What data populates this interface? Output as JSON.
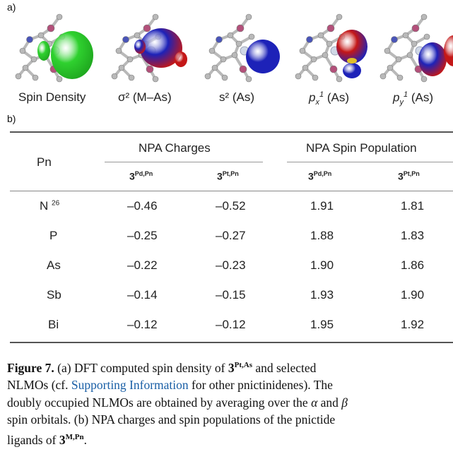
{
  "panel_a_label": "a)",
  "panel_b_label": "b)",
  "orbitals": [
    {
      "caption": "Spin Density",
      "lobe_color": "#2fd12f",
      "lobe_color_2": "#1fa81f"
    },
    {
      "caption": "σ² (M–As)",
      "lobe_color": "#1d22b8",
      "lobe_color_2": "#c41717"
    },
    {
      "caption": "s² (As)",
      "lobe_color": "#1d22b8",
      "lobe_color_2": "#1d22b8"
    },
    {
      "caption_italic": "p",
      "caption_sub": "x",
      "caption_sup": "1",
      "caption_rest": " (As)",
      "lobe_color": "#c41717",
      "lobe_color_2": "#1d22b8"
    },
    {
      "caption_italic": "p",
      "caption_sub": "y",
      "caption_sup": "1",
      "caption_rest": " (As)",
      "lobe_color": "#1d22b8",
      "lobe_color_2": "#c41717"
    }
  ],
  "table": {
    "header_pn": "Pn",
    "group_1": "NPA Charges",
    "group_2": "NPA Spin Population",
    "subheaders": [
      {
        "num": "3",
        "sup": "Pd,Pn"
      },
      {
        "num": "3",
        "sup": "Pt,Pn"
      },
      {
        "num": "3",
        "sup": "Pd,Pn"
      },
      {
        "num": "3",
        "sup": "Pt,Pn"
      }
    ],
    "rows": [
      {
        "pn": "N",
        "ref": "26",
        "values": [
          "–0.46",
          "–0.52",
          "1.91",
          "1.81"
        ]
      },
      {
        "pn": "P",
        "ref": "",
        "values": [
          "–0.25",
          "–0.27",
          "1.88",
          "1.83"
        ]
      },
      {
        "pn": "As",
        "ref": "",
        "values": [
          "–0.22",
          "–0.23",
          "1.90",
          "1.86"
        ]
      },
      {
        "pn": "Sb",
        "ref": "",
        "values": [
          "–0.14",
          "–0.15",
          "1.93",
          "1.90"
        ]
      },
      {
        "pn": "Bi",
        "ref": "",
        "values": [
          "–0.12",
          "–0.12",
          "1.95",
          "1.92"
        ]
      }
    ]
  },
  "caption": {
    "figure_label": "Figure 7.",
    "line1_a": " (a) DFT computed spin density of ",
    "line1_num": "3",
    "line1_sup": "Pt,As",
    "line1_b": " and selected",
    "line2_a": "NLMOs (cf. ",
    "line2_link": "Supporting Information",
    "line2_b": " for other pnictinidenes). The",
    "line3_a": "doubly occupied NLMOs are obtained by averaging over the ",
    "line3_alpha": "α",
    "line3_b": " and ",
    "line3_beta": "β",
    "line4": "spin orbitals. (b) NPA charges and spin populations of the pnictide",
    "line5_a": "ligands of ",
    "line5_num": "3",
    "line5_sup": "M,Pn",
    "line5_b": "."
  },
  "colors": {
    "skeleton": "#b9b9b9",
    "metal": "#d0d8e6",
    "phosphorus": "#b3507a",
    "nitrogen": "#4a55b8"
  }
}
